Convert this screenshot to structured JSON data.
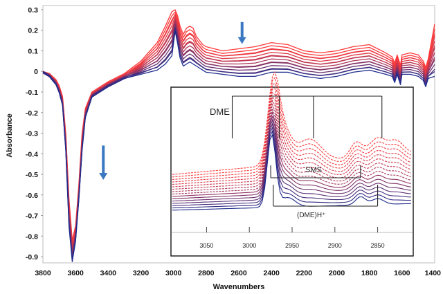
{
  "chart_data": {
    "type": "line",
    "xlabel": "Wavenumbers",
    "ylabel": "Absorbance",
    "x_reversed": true,
    "xlim": [
      3800,
      1400
    ],
    "ylim": [
      -0.93,
      0.32
    ],
    "x_ticks": [
      "3800",
      "3600",
      "3400",
      "3200",
      "3000",
      "2800",
      "2600",
      "2400",
      "2200",
      "2000",
      "1800",
      "1600",
      "1400"
    ],
    "y_ticks": [
      "0.3",
      "0.2",
      "0.1",
      "0",
      "-0.1",
      "-0.2",
      "-0.3",
      "-0.4",
      "-0.5",
      "-0.6",
      "-0.7",
      "-0.8",
      "-0.9"
    ],
    "colors": {
      "first_series": "#ff3a3a",
      "last_series": "#1c2a8c",
      "arrow": "#3a78c2",
      "frame": "#222222"
    },
    "series_count": 14,
    "series_trend": "decreasing",
    "profile": {
      "wavenumbers": [
        3800,
        3760,
        3720,
        3700,
        3680,
        3660,
        3640,
        3620,
        3600,
        3580,
        3560,
        3540,
        3500,
        3400,
        3300,
        3200,
        3100,
        3050,
        3010,
        2990,
        2975,
        2960,
        2940,
        2920,
        2900,
        2880,
        2860,
        2840,
        2820,
        2800,
        2700,
        2600,
        2500,
        2400,
        2300,
        2200,
        2100,
        2000,
        1900,
        1800,
        1700,
        1660,
        1645,
        1630,
        1610,
        1600,
        1550,
        1500,
        1470,
        1455,
        1440,
        1400
      ],
      "first": [
        0.0,
        -0.01,
        -0.04,
        -0.07,
        -0.12,
        -0.3,
        -0.62,
        -0.82,
        -0.75,
        -0.55,
        -0.3,
        -0.18,
        -0.1,
        -0.05,
        -0.01,
        0.05,
        0.14,
        0.22,
        0.29,
        0.3,
        0.27,
        0.22,
        0.18,
        0.21,
        0.22,
        0.21,
        0.17,
        0.15,
        0.13,
        0.12,
        0.1,
        0.11,
        0.12,
        0.14,
        0.13,
        0.1,
        0.09,
        0.1,
        0.12,
        0.13,
        0.09,
        0.07,
        0.04,
        0.08,
        0.03,
        0.08,
        0.09,
        0.08,
        0.05,
        0.02,
        0.06,
        0.23
      ],
      "last": [
        0.0,
        -0.02,
        -0.06,
        -0.1,
        -0.16,
        -0.38,
        -0.75,
        -0.92,
        -0.82,
        -0.62,
        -0.38,
        -0.22,
        -0.12,
        -0.07,
        -0.03,
        -0.01,
        0.01,
        0.04,
        0.08,
        0.2,
        0.14,
        0.07,
        0.03,
        0.04,
        0.05,
        0.04,
        0.03,
        0.02,
        0.01,
        0.0,
        -0.01,
        -0.02,
        -0.02,
        0.0,
        0.0,
        -0.02,
        -0.03,
        -0.02,
        0.0,
        0.01,
        -0.01,
        -0.02,
        -0.05,
        -0.01,
        -0.06,
        -0.01,
        -0.01,
        -0.02,
        -0.04,
        -0.07,
        -0.03,
        -0.02
      ]
    },
    "arrows": [
      {
        "name": "arrow-hydroxyl",
        "x": 3430,
        "y_from": -0.36,
        "y_to": -0.52,
        "direction": "down"
      },
      {
        "name": "arrow-background",
        "x": 2580,
        "y_from": 0.24,
        "y_to": 0.14,
        "direction": "down"
      }
    ],
    "inset": {
      "x_ticks": [
        "3050",
        "3000",
        "2950",
        "2900",
        "2850"
      ],
      "xlim": [
        3090,
        2810
      ],
      "brackets": [
        {
          "name": "dme-bracket",
          "label": "DME",
          "peaks": [
            3020,
            2965,
            2925,
            2845
          ]
        },
        {
          "name": "sms-bracket",
          "label": "SMS",
          "peaks": [
            2975,
            2870
          ]
        },
        {
          "name": "dmeh-bracket",
          "label": "(DME)H⁺",
          "peaks": [
            2972,
            2850
          ]
        }
      ]
    }
  }
}
